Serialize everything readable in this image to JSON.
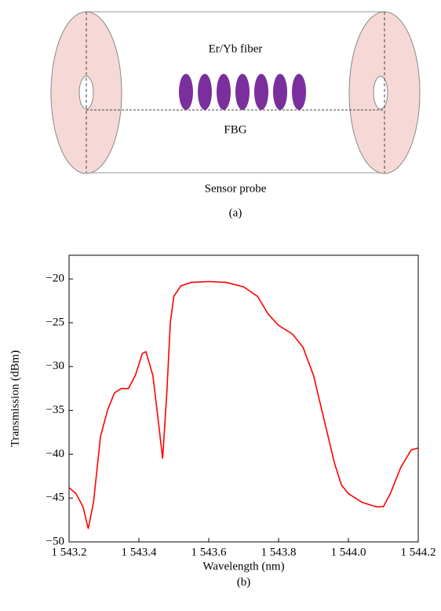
{
  "diagram": {
    "fiber_label": "Er/Yb fiber",
    "grating_label": "FBG",
    "probe_label": "Sensor probe",
    "caption": "(a)"
  },
  "chart_data": {
    "type": "line",
    "caption": "(b)",
    "x_label": "Wavelength (nm)",
    "y_label": "Transmission (dBm)",
    "xlim": [
      1543.2,
      1544.2
    ],
    "ylim": [
      -50,
      -17.3
    ],
    "xticks": [
      {
        "value": 1543.2,
        "label": "1 543.2"
      },
      {
        "value": 1543.4,
        "label": "1 543.4"
      },
      {
        "value": 1543.6,
        "label": "1 543.6"
      },
      {
        "value": 1543.8,
        "label": "1 543.8"
      },
      {
        "value": 1544.0,
        "label": "1 544.0"
      },
      {
        "value": 1544.2,
        "label": "1 544.2"
      }
    ],
    "yticks": [
      {
        "value": -50,
        "label": "−50"
      },
      {
        "value": -45,
        "label": "−45"
      },
      {
        "value": -40,
        "label": "−40"
      },
      {
        "value": -35,
        "label": "−35"
      },
      {
        "value": -30,
        "label": "−30"
      },
      {
        "value": -25,
        "label": "−25"
      },
      {
        "value": -20,
        "label": "−20"
      }
    ],
    "grid": false,
    "series": [
      {
        "color": "#ff0000",
        "x": [
          1543.2,
          1543.22,
          1543.24,
          1543.255,
          1543.27,
          1543.29,
          1543.31,
          1543.33,
          1543.35,
          1543.37,
          1543.39,
          1543.41,
          1543.42,
          1543.44,
          1543.455,
          1543.468,
          1543.48,
          1543.49,
          1543.5,
          1543.52,
          1543.55,
          1543.6,
          1543.65,
          1543.7,
          1543.74,
          1543.77,
          1543.8,
          1543.84,
          1543.87,
          1543.9,
          1543.93,
          1543.96,
          1543.98,
          1544.0,
          1544.04,
          1544.08,
          1544.1,
          1544.12,
          1544.15,
          1544.18,
          1544.2
        ],
        "values": [
          -43.8,
          -44.5,
          -46,
          -48.5,
          -45.5,
          -38,
          -35,
          -33,
          -32.5,
          -32.5,
          -31,
          -28.5,
          -28.3,
          -31,
          -36,
          -40.5,
          -33,
          -25,
          -22,
          -20.8,
          -20.4,
          -20.3,
          -20.4,
          -20.9,
          -22,
          -24,
          -25.3,
          -26.3,
          -27.8,
          -31,
          -36,
          -41,
          -43.5,
          -44.5,
          -45.5,
          -46,
          -46,
          -44.5,
          -41.5,
          -39.5,
          -39.3
        ]
      }
    ]
  }
}
